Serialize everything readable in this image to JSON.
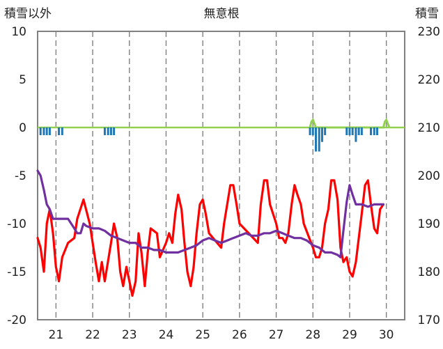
{
  "chart_data": {
    "type": "line",
    "title": "無意根",
    "ylabel_left": "積雪以外",
    "ylabel_right": "積雪",
    "ylim_left": [
      -20,
      10
    ],
    "ylim_right": [
      170,
      230
    ],
    "left_ticks": [
      "10",
      "5",
      "0",
      "-5",
      "-10",
      "-15",
      "-20"
    ],
    "right_ticks": [
      "230",
      "220",
      "210",
      "200",
      "190",
      "180",
      "170"
    ],
    "x_categories": [
      "21",
      "22",
      "23",
      "24",
      "25",
      "26",
      "27",
      "28",
      "29",
      "30"
    ],
    "xlim_days": [
      20.5,
      30.5
    ],
    "grid": "dashed vertical lines at day boundaries",
    "colors": {
      "temperature": "#ff0000",
      "snow_depth": "#7030a0",
      "precip_positive": "#92d050",
      "precip_negative": "#1f77b4",
      "frame": "#808080",
      "grid": "#808080"
    },
    "series": [
      {
        "axis": "left",
        "color": "#ff0000",
        "points": [
          [
            20.5,
            -11.5
          ],
          [
            20.58,
            -12.5
          ],
          [
            20.67,
            -15.0
          ],
          [
            20.75,
            -10.0
          ],
          [
            20.83,
            -8.5
          ],
          [
            20.92,
            -11.0
          ],
          [
            21.0,
            -14.5
          ],
          [
            21.08,
            -16.0
          ],
          [
            21.17,
            -13.5
          ],
          [
            21.33,
            -12.0
          ],
          [
            21.5,
            -11.5
          ],
          [
            21.58,
            -9.5
          ],
          [
            21.75,
            -7.5
          ],
          [
            21.92,
            -10.0
          ],
          [
            22.08,
            -14.0
          ],
          [
            22.17,
            -16.0
          ],
          [
            22.25,
            -14.0
          ],
          [
            22.33,
            -16.0
          ],
          [
            22.5,
            -12.0
          ],
          [
            22.58,
            -10.0
          ],
          [
            22.67,
            -11.5
          ],
          [
            22.75,
            -15.0
          ],
          [
            22.83,
            -16.5
          ],
          [
            22.92,
            -14.5
          ],
          [
            23.0,
            -16.0
          ],
          [
            23.08,
            -17.5
          ],
          [
            23.17,
            -16.0
          ],
          [
            23.25,
            -11.0
          ],
          [
            23.33,
            -13.0
          ],
          [
            23.42,
            -16.5
          ],
          [
            23.5,
            -13.0
          ],
          [
            23.58,
            -10.5
          ],
          [
            23.75,
            -11.0
          ],
          [
            23.83,
            -13.5
          ],
          [
            24.0,
            -12.0
          ],
          [
            24.08,
            -11.0
          ],
          [
            24.17,
            -12.0
          ],
          [
            24.25,
            -9.0
          ],
          [
            24.33,
            -7.0
          ],
          [
            24.42,
            -8.5
          ],
          [
            24.5,
            -12.0
          ],
          [
            24.58,
            -15.0
          ],
          [
            24.67,
            -16.5
          ],
          [
            24.75,
            -14.5
          ],
          [
            24.83,
            -11.0
          ],
          [
            24.92,
            -8.0
          ],
          [
            25.0,
            -7.5
          ],
          [
            25.08,
            -9.0
          ],
          [
            25.17,
            -11.0
          ],
          [
            25.5,
            -12.5
          ],
          [
            25.58,
            -10.0
          ],
          [
            25.75,
            -6.0
          ],
          [
            25.83,
            -6.0
          ],
          [
            25.92,
            -8.0
          ],
          [
            26.0,
            -10.0
          ],
          [
            26.5,
            -12.0
          ],
          [
            26.58,
            -8.0
          ],
          [
            26.67,
            -5.5
          ],
          [
            26.75,
            -5.5
          ],
          [
            26.83,
            -8.0
          ],
          [
            27.0,
            -10.0
          ],
          [
            27.08,
            -11.5
          ],
          [
            27.17,
            -11.5
          ],
          [
            27.25,
            -12.0
          ],
          [
            27.33,
            -11.0
          ],
          [
            27.42,
            -8.0
          ],
          [
            27.5,
            -6.0
          ],
          [
            27.58,
            -7.0
          ],
          [
            27.67,
            -8.0
          ],
          [
            27.75,
            -10.0
          ],
          [
            28.0,
            -12.5
          ],
          [
            28.08,
            -13.5
          ],
          [
            28.17,
            -13.5
          ],
          [
            28.25,
            -12.5
          ],
          [
            28.33,
            -10.0
          ],
          [
            28.42,
            -8.5
          ],
          [
            28.5,
            -5.5
          ],
          [
            28.58,
            -5.5
          ],
          [
            28.67,
            -7.5
          ],
          [
            28.75,
            -12.5
          ],
          [
            28.83,
            -14.0
          ],
          [
            28.92,
            -13.5
          ],
          [
            29.0,
            -15.0
          ],
          [
            29.08,
            -15.5
          ],
          [
            29.17,
            -14.0
          ],
          [
            29.25,
            -11.5
          ],
          [
            29.33,
            -9.0
          ],
          [
            29.42,
            -6.0
          ],
          [
            29.5,
            -5.5
          ],
          [
            29.58,
            -8.0
          ],
          [
            29.67,
            -10.5
          ],
          [
            29.75,
            -11.0
          ],
          [
            29.83,
            -8.5
          ],
          [
            29.92,
            -8.0
          ]
        ]
      },
      {
        "axis": "right",
        "color": "#7030a0",
        "points": [
          [
            20.5,
            201.0
          ],
          [
            20.58,
            200.0
          ],
          [
            20.67,
            197.0
          ],
          [
            20.75,
            194.0
          ],
          [
            20.83,
            193.0
          ],
          [
            20.92,
            191.0
          ],
          [
            21.0,
            191.0
          ],
          [
            21.17,
            191.0
          ],
          [
            21.33,
            191.0
          ],
          [
            21.5,
            189.0
          ],
          [
            21.58,
            188.0
          ],
          [
            21.67,
            188.0
          ],
          [
            21.75,
            190.0
          ],
          [
            21.83,
            189.5
          ],
          [
            22.0,
            189.0
          ],
          [
            22.17,
            189.0
          ],
          [
            22.33,
            188.5
          ],
          [
            22.5,
            187.5
          ],
          [
            22.67,
            187.0
          ],
          [
            22.83,
            186.5
          ],
          [
            23.0,
            186.0
          ],
          [
            23.17,
            186.0
          ],
          [
            23.33,
            185.0
          ],
          [
            23.5,
            185.0
          ],
          [
            23.67,
            184.5
          ],
          [
            23.83,
            184.5
          ],
          [
            24.0,
            184.0
          ],
          [
            24.17,
            184.0
          ],
          [
            24.33,
            184.0
          ],
          [
            24.5,
            184.5
          ],
          [
            24.67,
            185.0
          ],
          [
            24.83,
            185.5
          ],
          [
            25.0,
            186.5
          ],
          [
            25.17,
            187.0
          ],
          [
            25.33,
            186.5
          ],
          [
            25.5,
            186.0
          ],
          [
            25.67,
            186.5
          ],
          [
            25.83,
            187.0
          ],
          [
            26.0,
            187.5
          ],
          [
            26.17,
            188.0
          ],
          [
            26.33,
            187.5
          ],
          [
            26.5,
            187.5
          ],
          [
            26.67,
            188.0
          ],
          [
            26.83,
            188.0
          ],
          [
            27.0,
            188.5
          ],
          [
            27.17,
            188.0
          ],
          [
            27.33,
            187.5
          ],
          [
            27.5,
            187.0
          ],
          [
            27.67,
            187.0
          ],
          [
            27.83,
            186.5
          ],
          [
            28.0,
            185.5
          ],
          [
            28.17,
            185.0
          ],
          [
            28.33,
            184.0
          ],
          [
            28.5,
            184.0
          ],
          [
            28.67,
            183.5
          ],
          [
            28.75,
            183.0
          ],
          [
            28.83,
            188.5
          ],
          [
            28.92,
            194.5
          ],
          [
            29.0,
            198.0
          ],
          [
            29.08,
            196.0
          ],
          [
            29.17,
            194.0
          ],
          [
            29.33,
            194.0
          ],
          [
            29.5,
            193.5
          ],
          [
            29.67,
            194.0
          ],
          [
            29.83,
            194.0
          ],
          [
            29.92,
            194.0
          ]
        ]
      },
      {
        "axis": "left",
        "color": "#92d050",
        "type": "precip_positive",
        "points": [
          [
            27.92,
            0.0
          ],
          [
            27.96,
            0.6
          ],
          [
            28.0,
            0.8
          ],
          [
            28.04,
            0.4
          ],
          [
            28.08,
            0.0
          ],
          [
            29.92,
            0.0
          ],
          [
            29.96,
            0.6
          ],
          [
            30.0,
            0.8
          ],
          [
            30.04,
            0.4
          ],
          [
            30.08,
            0.0
          ]
        ]
      },
      {
        "axis": "left",
        "color": "#1f77b4",
        "type": "precip_negative",
        "bars": [
          [
            20.58,
            -0.8
          ],
          [
            20.67,
            -0.8
          ],
          [
            20.75,
            -0.8
          ],
          [
            20.83,
            -0.8
          ],
          [
            21.08,
            -0.8
          ],
          [
            21.17,
            -0.8
          ],
          [
            22.33,
            -0.8
          ],
          [
            22.42,
            -0.8
          ],
          [
            22.5,
            -0.8
          ],
          [
            22.58,
            -0.8
          ],
          [
            27.92,
            -0.8
          ],
          [
            28.0,
            -0.8
          ],
          [
            28.08,
            -2.5
          ],
          [
            28.17,
            -2.5
          ],
          [
            28.25,
            -1.5
          ],
          [
            28.33,
            -0.8
          ],
          [
            28.92,
            -0.8
          ],
          [
            29.0,
            -0.8
          ],
          [
            29.08,
            -0.8
          ],
          [
            29.17,
            -1.5
          ],
          [
            29.25,
            -0.8
          ],
          [
            29.33,
            -0.8
          ],
          [
            29.58,
            -0.8
          ],
          [
            29.67,
            -0.8
          ],
          [
            29.75,
            -0.8
          ]
        ]
      }
    ]
  }
}
